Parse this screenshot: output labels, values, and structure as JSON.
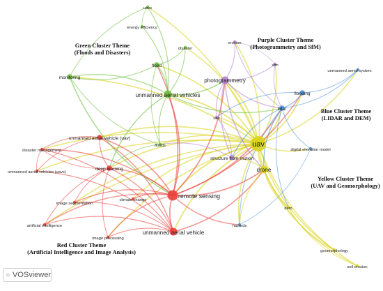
{
  "themes": {
    "green": [
      "Green Cluster Theme",
      "(Floods and Disasters)"
    ],
    "purple": [
      "Purple Cluster Theme",
      "(Photogrammetry and SfM)"
    ],
    "blue": [
      "Blue Cluster Theme",
      "(LIDAR and DEM)"
    ],
    "yellow": [
      "Yellow Cluster Theme",
      "(UAV and Geomorphology)"
    ],
    "red": [
      "Red Cluster Theme",
      "(Artificial Intelligence and Image Analysis)"
    ]
  },
  "colors": {
    "red": "#e8403a",
    "green": "#6cbf3a",
    "blue": "#4a90d9",
    "purple": "#b27fd0",
    "yellow": "#d9d41a"
  },
  "nodes": [
    {
      "id": "uavs",
      "label": "uavs",
      "cluster": "green",
      "weight": 1
    },
    {
      "id": "energy-efficiency",
      "label": "energy efficiency",
      "cluster": "green",
      "weight": 1
    },
    {
      "id": "disaster",
      "label": "disaster",
      "cluster": "green",
      "weight": 1
    },
    {
      "id": "flood",
      "label": "flood",
      "cluster": "green",
      "weight": 2
    },
    {
      "id": "monitoring",
      "label": "monitoring",
      "cluster": "green",
      "weight": 2
    },
    {
      "id": "unmanned-aerial-vehicles",
      "label": "unmanned aerial vehicles",
      "cluster": "green",
      "weight": 3
    },
    {
      "id": "floods",
      "label": "floods",
      "cluster": "green",
      "weight": 1
    },
    {
      "id": "erosion",
      "label": "erosion",
      "cluster": "purple",
      "weight": 1
    },
    {
      "id": "sfm",
      "label": "sfm",
      "cluster": "purple",
      "weight": 1
    },
    {
      "id": "photogrammetry",
      "label": "photogrammetry",
      "cluster": "purple",
      "weight": 3
    },
    {
      "id": "uas",
      "label": "uas",
      "cluster": "purple",
      "weight": 1
    },
    {
      "id": "structure-from-motion",
      "label": "structure from motion",
      "cluster": "purple",
      "weight": 2
    },
    {
      "id": "unmanned-aerial-system",
      "label": "unmanned aerial system",
      "cluster": "blue",
      "weight": 1
    },
    {
      "id": "flooding",
      "label": "flooding",
      "cluster": "blue",
      "weight": 2
    },
    {
      "id": "lidar",
      "label": "lidar",
      "cluster": "blue",
      "weight": 2
    },
    {
      "id": "digital-elevation-model",
      "label": "digital elevation model",
      "cluster": "blue",
      "weight": 1
    },
    {
      "id": "hazards",
      "label": "hazards",
      "cluster": "blue",
      "weight": 1
    },
    {
      "id": "uav",
      "label": "uav",
      "cluster": "yellow",
      "weight": 5
    },
    {
      "id": "drone",
      "label": "drone",
      "cluster": "yellow",
      "weight": 3
    },
    {
      "id": "dem",
      "label": "dem",
      "cluster": "yellow",
      "weight": 1
    },
    {
      "id": "geomorphology",
      "label": "geomorphology",
      "cluster": "yellow",
      "weight": 1
    },
    {
      "id": "soil-erosion",
      "label": "soil erosion",
      "cluster": "yellow",
      "weight": 1
    },
    {
      "id": "unmanned-aerial-vehicle-uav",
      "label": "unmanned aerial vehicle (uav)",
      "cluster": "red",
      "weight": 2
    },
    {
      "id": "disaster-management",
      "label": "disaster management",
      "cluster": "red",
      "weight": 1
    },
    {
      "id": "unmanned-aerial-vehicles-uavs",
      "label": "unmanned aerial vehicles (uavs)",
      "cluster": "red",
      "weight": 1
    },
    {
      "id": "deep-learning",
      "label": "deep learning",
      "cluster": "red",
      "weight": 2
    },
    {
      "id": "remote-sensing",
      "label": "remote sensing",
      "cluster": "red",
      "weight": 4
    },
    {
      "id": "image-segmentation",
      "label": "image segmentation",
      "cluster": "red",
      "weight": 1
    },
    {
      "id": "climate-change",
      "label": "climate change",
      "cluster": "red",
      "weight": 1
    },
    {
      "id": "artificial-intelligence",
      "label": "artificial intelligence",
      "cluster": "red",
      "weight": 1
    },
    {
      "id": "image-processing",
      "label": "image processing",
      "cluster": "red",
      "weight": 1
    },
    {
      "id": "unmanned-aerial-vehicle",
      "label": "unmanned aerial vehicle",
      "cluster": "red",
      "weight": 3
    }
  ],
  "links": [
    [
      "uav",
      "remote-sensing"
    ],
    [
      "uav",
      "drone"
    ],
    [
      "uav",
      "lidar"
    ],
    [
      "uav",
      "photogrammetry"
    ],
    [
      "uav",
      "flooding"
    ],
    [
      "uav",
      "unmanned-aerial-vehicles"
    ],
    [
      "uav",
      "unmanned-aerial-vehicle"
    ],
    [
      "uav",
      "deep-learning"
    ],
    [
      "uav",
      "monitoring"
    ],
    [
      "uav",
      "flood"
    ],
    [
      "uav",
      "uavs"
    ],
    [
      "uav",
      "dem"
    ],
    [
      "uav",
      "hazards"
    ],
    [
      "uav",
      "soil-erosion"
    ],
    [
      "uav",
      "geomorphology"
    ],
    [
      "uav",
      "structure-from-motion"
    ],
    [
      "uav",
      "uas"
    ],
    [
      "uav",
      "sfm"
    ],
    [
      "uav",
      "erosion"
    ],
    [
      "uav",
      "unmanned-aerial-system"
    ],
    [
      "uav",
      "digital-elevation-model"
    ],
    [
      "uav",
      "floods"
    ],
    [
      "uav",
      "image-segmentation"
    ],
    [
      "uav",
      "climate-change"
    ],
    [
      "uav",
      "disaster-management"
    ],
    [
      "uav",
      "unmanned-aerial-vehicle-uav"
    ],
    [
      "uav",
      "artificial-intelligence"
    ],
    [
      "uav",
      "image-processing"
    ],
    [
      "uav",
      "unmanned-aerial-vehicles-uavs"
    ],
    [
      "uav",
      "disaster"
    ],
    [
      "remote-sensing",
      "unmanned-aerial-vehicle"
    ],
    [
      "remote-sensing",
      "deep-learning"
    ],
    [
      "remote-sensing",
      "image-segmentation"
    ],
    [
      "remote-sensing",
      "unmanned-aerial-vehicle-uav"
    ],
    [
      "remote-sensing",
      "disaster-management"
    ],
    [
      "remote-sensing",
      "lidar"
    ],
    [
      "remote-sensing",
      "unmanned-aerial-vehicles"
    ],
    [
      "remote-sensing",
      "flood"
    ],
    [
      "remote-sensing",
      "climate-change"
    ],
    [
      "remote-sensing",
      "artificial-intelligence"
    ],
    [
      "remote-sensing",
      "image-processing"
    ],
    [
      "remote-sensing",
      "drone"
    ],
    [
      "remote-sensing",
      "photogrammetry"
    ],
    [
      "remote-sensing",
      "flooding"
    ],
    [
      "remote-sensing",
      "hazards"
    ],
    [
      "unmanned-aerial-vehicle",
      "deep-learning"
    ],
    [
      "unmanned-aerial-vehicle",
      "image-processing"
    ],
    [
      "unmanned-aerial-vehicle",
      "artificial-intelligence"
    ],
    [
      "unmanned-aerial-vehicle",
      "image-segmentation"
    ],
    [
      "unmanned-aerial-vehicle",
      "unmanned-aerial-vehicle-uav"
    ],
    [
      "unmanned-aerial-vehicle",
      "disaster-management"
    ],
    [
      "unmanned-aerial-vehicle",
      "unmanned-aerial-vehicles-uavs"
    ],
    [
      "unmanned-aerial-vehicle",
      "drone"
    ],
    [
      "unmanned-aerial-vehicle-uav",
      "deep-learning"
    ],
    [
      "unmanned-aerial-vehicle-uav",
      "disaster-management"
    ],
    [
      "unmanned-aerial-vehicle-uav",
      "unmanned-aerial-vehicles-uavs"
    ],
    [
      "disaster-management",
      "deep-learning"
    ],
    [
      "disaster-management",
      "unmanned-aerial-vehicles-uavs"
    ],
    [
      "deep-learning",
      "image-segmentation"
    ],
    [
      "deep-learning",
      "artificial-intelligence"
    ],
    [
      "deep-learning",
      "image-processing"
    ],
    [
      "unmanned-aerial-vehicles",
      "monitoring"
    ],
    [
      "unmanned-aerial-vehicles",
      "flood"
    ],
    [
      "unmanned-aerial-vehicles",
      "floods"
    ],
    [
      "unmanned-aerial-vehicles",
      "uavs"
    ],
    [
      "unmanned-aerial-vehicles",
      "energy-efficiency"
    ],
    [
      "unmanned-aerial-vehicles",
      "disaster"
    ],
    [
      "unmanned-aerial-vehicles",
      "deep-learning"
    ],
    [
      "unmanned-aerial-vehicles",
      "photogrammetry"
    ],
    [
      "unmanned-aerial-vehicles",
      "lidar"
    ],
    [
      "monitoring",
      "flood"
    ],
    [
      "monitoring",
      "floods"
    ],
    [
      "monitoring",
      "remote-sensing"
    ],
    [
      "flood",
      "floods"
    ],
    [
      "flood",
      "disaster"
    ],
    [
      "uavs",
      "energy-efficiency"
    ],
    [
      "uavs",
      "monitoring"
    ],
    [
      "floods",
      "deep-learning"
    ],
    [
      "photogrammetry",
      "sfm"
    ],
    [
      "photogrammetry",
      "erosion"
    ],
    [
      "photogrammetry",
      "lidar"
    ],
    [
      "photogrammetry",
      "structure-from-motion"
    ],
    [
      "photogrammetry",
      "uas"
    ],
    [
      "photogrammetry",
      "drone"
    ],
    [
      "sfm",
      "lidar"
    ],
    [
      "sfm",
      "erosion"
    ],
    [
      "erosion",
      "lidar"
    ],
    [
      "lidar",
      "flooding"
    ],
    [
      "lidar",
      "digital-elevation-model"
    ],
    [
      "lidar",
      "structure-from-motion"
    ],
    [
      "lidar",
      "drone"
    ],
    [
      "lidar",
      "unmanned-aerial-system"
    ],
    [
      "lidar",
      "hazards"
    ],
    [
      "lidar",
      "dem"
    ],
    [
      "flooding",
      "unmanned-aerial-system"
    ],
    [
      "flooding",
      "uas"
    ],
    [
      "drone",
      "dem"
    ],
    [
      "drone",
      "geomorphology"
    ],
    [
      "drone",
      "soil-erosion"
    ],
    [
      "drone",
      "hazards"
    ],
    [
      "drone",
      "structure-from-motion"
    ],
    [
      "dem",
      "geomorphology"
    ],
    [
      "dem",
      "soil-erosion"
    ],
    [
      "hazards",
      "digital-elevation-model"
    ],
    [
      "structure-from-motion",
      "uas"
    ],
    [
      "structure-from-motion",
      "floods"
    ]
  ],
  "branding": {
    "name": "VOSviewer"
  }
}
